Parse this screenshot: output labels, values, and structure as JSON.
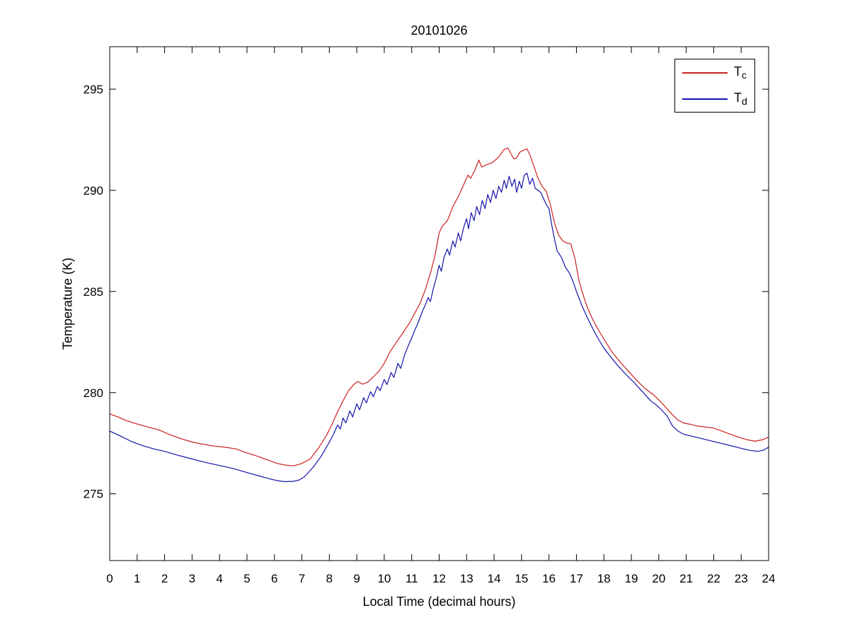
{
  "figure": {
    "background": "#ffffff",
    "axis_color": "#000000",
    "tick_label_color": "#000000"
  },
  "chart_data": {
    "type": "line",
    "title": "20101026",
    "xlabel": "Local Time (decimal hours)",
    "ylabel": "Temperature (K)",
    "xlim": [
      0,
      24
    ],
    "ylim": [
      271.7,
      297.1
    ],
    "x_ticks": [
      0,
      1,
      2,
      3,
      4,
      5,
      6,
      7,
      8,
      9,
      10,
      11,
      12,
      13,
      14,
      15,
      16,
      17,
      18,
      19,
      20,
      21,
      22,
      23,
      24
    ],
    "y_ticks": [
      275,
      280,
      285,
      290,
      295
    ],
    "grid": false,
    "legend": {
      "position": "top-right",
      "border": true
    },
    "series": [
      {
        "name": "Tc",
        "label_base": "T",
        "label_sub": "c",
        "color": "#cc2020",
        "points": [
          [
            0,
            278.95
          ],
          [
            0.3,
            278.8
          ],
          [
            0.6,
            278.62
          ],
          [
            1,
            278.45
          ],
          [
            1.4,
            278.3
          ],
          [
            1.8,
            278.15
          ],
          [
            2.2,
            277.92
          ],
          [
            2.6,
            277.72
          ],
          [
            3,
            277.56
          ],
          [
            3.4,
            277.45
          ],
          [
            3.8,
            277.36
          ],
          [
            4.2,
            277.3
          ],
          [
            4.6,
            277.22
          ],
          [
            5,
            277.02
          ],
          [
            5.4,
            276.85
          ],
          [
            5.8,
            276.65
          ],
          [
            6.1,
            276.5
          ],
          [
            6.4,
            276.42
          ],
          [
            6.7,
            276.38
          ],
          [
            7,
            276.5
          ],
          [
            7.3,
            276.72
          ],
          [
            7.6,
            277.25
          ],
          [
            7.9,
            277.9
          ],
          [
            8.1,
            278.45
          ],
          [
            8.3,
            279.05
          ],
          [
            8.5,
            279.6
          ],
          [
            8.7,
            280.1
          ],
          [
            8.9,
            280.42
          ],
          [
            9.05,
            280.55
          ],
          [
            9.2,
            280.42
          ],
          [
            9.4,
            280.52
          ],
          [
            9.6,
            280.78
          ],
          [
            9.8,
            281.05
          ],
          [
            10,
            281.45
          ],
          [
            10.2,
            282
          ],
          [
            10.5,
            282.6
          ],
          [
            10.7,
            283
          ],
          [
            10.9,
            283.4
          ],
          [
            11.1,
            283.9
          ],
          [
            11.3,
            284.4
          ],
          [
            11.5,
            285.1
          ],
          [
            11.7,
            286
          ],
          [
            11.85,
            286.8
          ],
          [
            12,
            287.9
          ],
          [
            12.1,
            288.2
          ],
          [
            12.3,
            288.5
          ],
          [
            12.5,
            289.2
          ],
          [
            12.7,
            289.7
          ],
          [
            12.9,
            290.3
          ],
          [
            13.05,
            290.75
          ],
          [
            13.15,
            290.6
          ],
          [
            13.3,
            291
          ],
          [
            13.45,
            291.5
          ],
          [
            13.55,
            291.15
          ],
          [
            13.7,
            291.25
          ],
          [
            13.9,
            291.35
          ],
          [
            14.05,
            291.5
          ],
          [
            14.2,
            291.7
          ],
          [
            14.35,
            292
          ],
          [
            14.5,
            292.1
          ],
          [
            14.62,
            291.8
          ],
          [
            14.72,
            291.55
          ],
          [
            14.82,
            291.6
          ],
          [
            14.95,
            291.9
          ],
          [
            15.1,
            292
          ],
          [
            15.2,
            292.05
          ],
          [
            15.32,
            291.7
          ],
          [
            15.45,
            291.2
          ],
          [
            15.6,
            290.6
          ],
          [
            15.75,
            290.2
          ],
          [
            15.9,
            289.95
          ],
          [
            16.05,
            289.3
          ],
          [
            16.2,
            288.4
          ],
          [
            16.35,
            287.8
          ],
          [
            16.5,
            287.5
          ],
          [
            16.65,
            287.4
          ],
          [
            16.8,
            287.35
          ],
          [
            16.95,
            286.6
          ],
          [
            17.1,
            285.5
          ],
          [
            17.25,
            284.8
          ],
          [
            17.4,
            284.2
          ],
          [
            17.6,
            283.6
          ],
          [
            17.8,
            283.1
          ],
          [
            18,
            282.65
          ],
          [
            18.3,
            282
          ],
          [
            18.6,
            281.5
          ],
          [
            18.9,
            281.05
          ],
          [
            19.2,
            280.6
          ],
          [
            19.5,
            280.2
          ],
          [
            19.8,
            279.9
          ],
          [
            20,
            279.65
          ],
          [
            20.3,
            279.2
          ],
          [
            20.5,
            278.9
          ],
          [
            20.7,
            278.65
          ],
          [
            20.9,
            278.5
          ],
          [
            21.1,
            278.45
          ],
          [
            21.4,
            278.35
          ],
          [
            21.7,
            278.3
          ],
          [
            22,
            278.25
          ],
          [
            22.3,
            278.1
          ],
          [
            22.6,
            277.95
          ],
          [
            22.9,
            277.8
          ],
          [
            23.2,
            277.68
          ],
          [
            23.5,
            277.6
          ],
          [
            23.8,
            277.68
          ],
          [
            24,
            277.8
          ]
        ]
      },
      {
        "name": "Td",
        "label_base": "T",
        "label_sub": "d",
        "color": "#1414aa",
        "points": [
          [
            0,
            278.1
          ],
          [
            0.4,
            277.85
          ],
          [
            0.8,
            277.58
          ],
          [
            1.2,
            277.38
          ],
          [
            1.6,
            277.22
          ],
          [
            2,
            277.1
          ],
          [
            2.5,
            276.9
          ],
          [
            3,
            276.72
          ],
          [
            3.5,
            276.55
          ],
          [
            4,
            276.4
          ],
          [
            4.5,
            276.25
          ],
          [
            5,
            276.05
          ],
          [
            5.4,
            275.9
          ],
          [
            5.8,
            275.75
          ],
          [
            6.1,
            275.65
          ],
          [
            6.4,
            275.6
          ],
          [
            6.7,
            275.62
          ],
          [
            6.9,
            275.68
          ],
          [
            7.1,
            275.85
          ],
          [
            7.4,
            276.3
          ],
          [
            7.7,
            276.85
          ],
          [
            8,
            277.55
          ],
          [
            8.15,
            277.95
          ],
          [
            8.3,
            278.4
          ],
          [
            8.4,
            278.2
          ],
          [
            8.5,
            278.75
          ],
          [
            8.6,
            278.5
          ],
          [
            8.75,
            279.1
          ],
          [
            8.85,
            278.8
          ],
          [
            9,
            279.45
          ],
          [
            9.1,
            279.15
          ],
          [
            9.25,
            279.75
          ],
          [
            9.35,
            279.5
          ],
          [
            9.5,
            280.05
          ],
          [
            9.6,
            279.8
          ],
          [
            9.75,
            280.3
          ],
          [
            9.85,
            280.1
          ],
          [
            10,
            280.65
          ],
          [
            10.1,
            280.4
          ],
          [
            10.25,
            281
          ],
          [
            10.35,
            280.75
          ],
          [
            10.5,
            281.45
          ],
          [
            10.6,
            281.2
          ],
          [
            10.75,
            281.9
          ],
          [
            10.9,
            282.4
          ],
          [
            11,
            282.7
          ],
          [
            11.1,
            283.05
          ],
          [
            11.2,
            283.35
          ],
          [
            11.3,
            283.7
          ],
          [
            11.4,
            284.05
          ],
          [
            11.5,
            284.35
          ],
          [
            11.6,
            284.7
          ],
          [
            11.68,
            284.5
          ],
          [
            11.78,
            285.1
          ],
          [
            11.9,
            285.7
          ],
          [
            12,
            286.3
          ],
          [
            12.08,
            286
          ],
          [
            12.18,
            286.7
          ],
          [
            12.3,
            287.1
          ],
          [
            12.38,
            286.8
          ],
          [
            12.5,
            287.5
          ],
          [
            12.58,
            287.2
          ],
          [
            12.7,
            287.9
          ],
          [
            12.78,
            287.5
          ],
          [
            12.9,
            288.2
          ],
          [
            13,
            288.6
          ],
          [
            13.07,
            288.1
          ],
          [
            13.17,
            288.9
          ],
          [
            13.27,
            288.5
          ],
          [
            13.37,
            289.2
          ],
          [
            13.47,
            288.8
          ],
          [
            13.57,
            289.5
          ],
          [
            13.67,
            289.1
          ],
          [
            13.77,
            289.8
          ],
          [
            13.87,
            289.4
          ],
          [
            13.97,
            290
          ],
          [
            14.07,
            289.6
          ],
          [
            14.17,
            290.2
          ],
          [
            14.27,
            289.9
          ],
          [
            14.37,
            290.5
          ],
          [
            14.45,
            290.1
          ],
          [
            14.55,
            290.7
          ],
          [
            14.65,
            290.2
          ],
          [
            14.75,
            290.55
          ],
          [
            14.82,
            289.9
          ],
          [
            14.92,
            290.45
          ],
          [
            15,
            290.1
          ],
          [
            15.1,
            290.75
          ],
          [
            15.2,
            290.85
          ],
          [
            15.3,
            290.3
          ],
          [
            15.4,
            290.6
          ],
          [
            15.5,
            290.1
          ],
          [
            15.6,
            290
          ],
          [
            15.7,
            289.9
          ],
          [
            15.8,
            289.6
          ],
          [
            15.9,
            289.3
          ],
          [
            16,
            289.1
          ],
          [
            16.1,
            288.3
          ],
          [
            16.2,
            287.6
          ],
          [
            16.3,
            287
          ],
          [
            16.45,
            286.7
          ],
          [
            16.6,
            286.2
          ],
          [
            16.75,
            285.9
          ],
          [
            16.9,
            285.4
          ],
          [
            17,
            285
          ],
          [
            17.2,
            284.3
          ],
          [
            17.4,
            283.7
          ],
          [
            17.6,
            283.15
          ],
          [
            17.8,
            282.65
          ],
          [
            18,
            282.2
          ],
          [
            18.2,
            281.85
          ],
          [
            18.5,
            281.35
          ],
          [
            18.8,
            280.9
          ],
          [
            19.1,
            280.5
          ],
          [
            19.4,
            280.05
          ],
          [
            19.7,
            279.6
          ],
          [
            19.9,
            279.4
          ],
          [
            20.1,
            279.15
          ],
          [
            20.3,
            278.85
          ],
          [
            20.5,
            278.35
          ],
          [
            20.7,
            278.1
          ],
          [
            20.9,
            277.95
          ],
          [
            21.2,
            277.85
          ],
          [
            21.5,
            277.75
          ],
          [
            21.8,
            277.65
          ],
          [
            22.1,
            277.55
          ],
          [
            22.4,
            277.45
          ],
          [
            22.7,
            277.35
          ],
          [
            23,
            277.25
          ],
          [
            23.3,
            277.15
          ],
          [
            23.6,
            277.1
          ],
          [
            23.8,
            277.15
          ],
          [
            24,
            277.3
          ]
        ]
      }
    ]
  }
}
